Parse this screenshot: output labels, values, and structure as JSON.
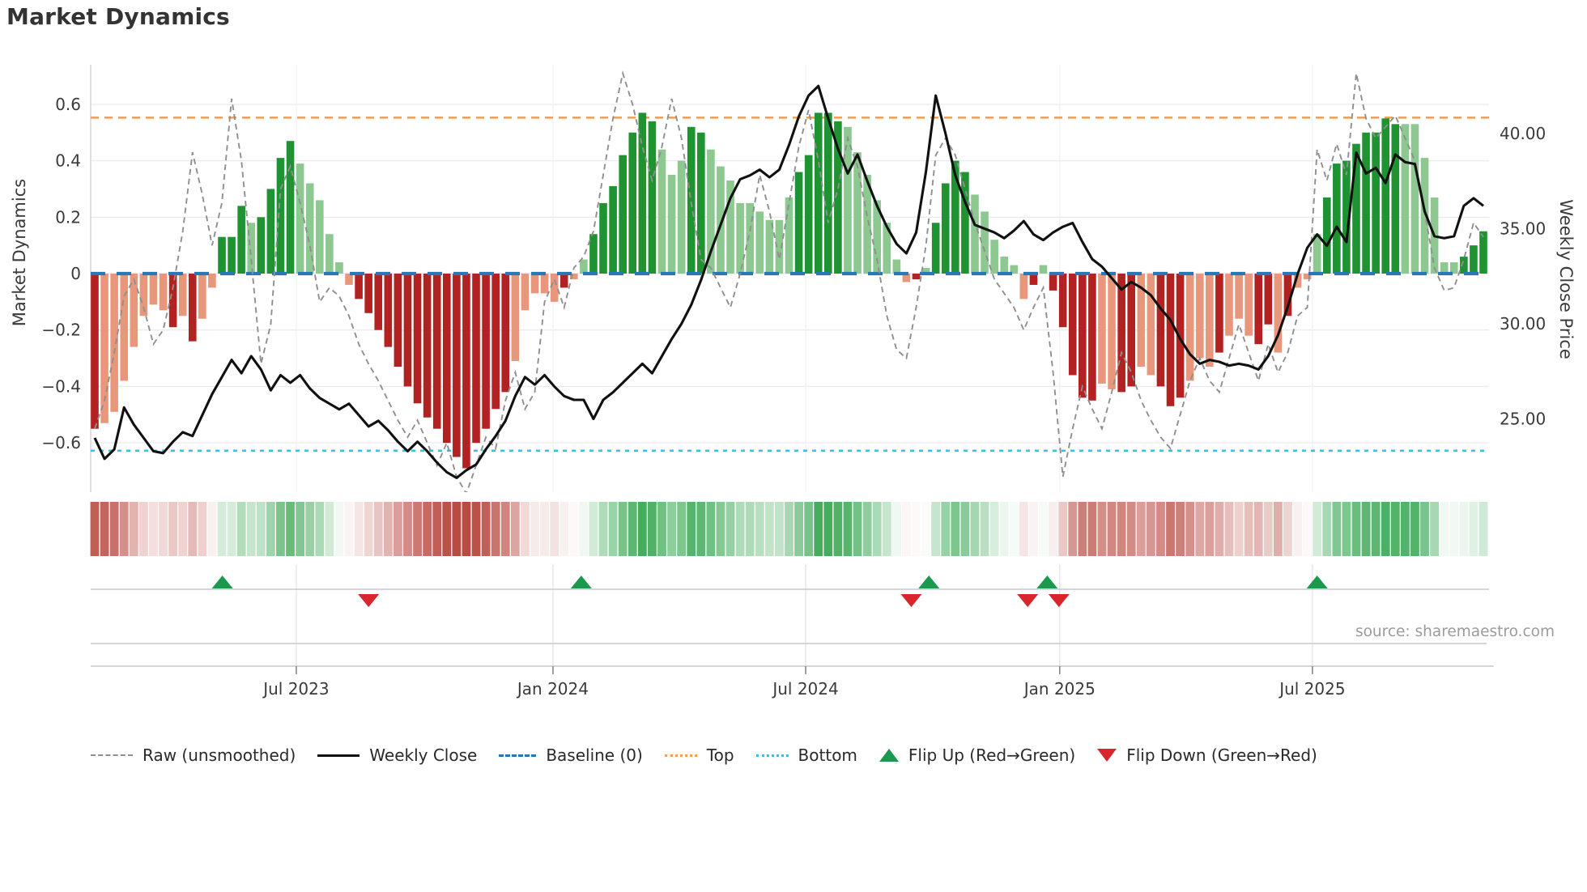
{
  "title": "Market Dynamics",
  "source": "source: sharemaestro.com",
  "legend": {
    "items": [
      {
        "label": "Raw (unsmoothed)",
        "swatch": "dash",
        "color": "#8f8f8f"
      },
      {
        "label": "Weekly Close",
        "swatch": "solid",
        "color": "#111111"
      },
      {
        "label": "Baseline (0)",
        "swatch": "longdash",
        "color": "#2878b8"
      },
      {
        "label": "Top",
        "swatch": "dot",
        "color": "#f0a058"
      },
      {
        "label": "Bottom",
        "swatch": "dot",
        "color": "#35c2e8"
      },
      {
        "label": "Flip Up (Red→Green)",
        "swatch": "tri-up",
        "color": "#1a9a4d"
      },
      {
        "label": "Flip Down (Green→Red)",
        "swatch": "tri-down",
        "color": "#d8262c"
      }
    ]
  },
  "chart_data": {
    "type": "combo",
    "title": "Market Dynamics",
    "frequency": "weekly",
    "week_count": 143,
    "x_tick_labels": [
      "Jul 2023",
      "Jan 2024",
      "Jul 2024",
      "Jan 2025",
      "Jul 2025"
    ],
    "x_tick_weeks": [
      20.61,
      46.86,
      72.7,
      98.68,
      124.52
    ],
    "left_axis": {
      "label": "Market Dynamics",
      "tick_labels": [
        "0.6",
        "0.4",
        "0.2",
        "0",
        "−0.2",
        "−0.4",
        "−0.6"
      ],
      "tick_values": [
        0.6,
        0.4,
        0.2,
        0,
        -0.2,
        -0.4,
        -0.6
      ],
      "range": [
        -0.775,
        0.74
      ]
    },
    "right_axis": {
      "label": "Weekly Close Price",
      "tick_labels": [
        "40.00",
        "35.00",
        "30.00",
        "25.00"
      ],
      "tick_values": [
        40,
        35,
        30,
        25
      ],
      "range": [
        21.15,
        43.6
      ]
    },
    "top_line": 0.553,
    "bottom_line": -0.628,
    "baseline": 0,
    "series": [
      {
        "name": "Market Dynamics (smoothed bars)",
        "type": "bar",
        "axis": "left"
      },
      {
        "name": "Raw (unsmoothed)",
        "type": "line",
        "axis": "left"
      },
      {
        "name": "Weekly Close",
        "type": "line",
        "axis": "right"
      },
      {
        "name": "Heat strip",
        "type": "heatmap"
      }
    ],
    "oscillator": [
      -0.55,
      -0.53,
      -0.49,
      -0.38,
      -0.26,
      -0.15,
      -0.11,
      -0.13,
      -0.19,
      -0.15,
      -0.24,
      -0.16,
      -0.05,
      0.13,
      0.13,
      0.24,
      0.18,
      0.2,
      0.3,
      0.41,
      0.47,
      0.39,
      0.32,
      0.26,
      0.14,
      0.04,
      -0.04,
      -0.09,
      -0.14,
      -0.2,
      -0.26,
      -0.33,
      -0.4,
      -0.46,
      -0.51,
      -0.55,
      -0.6,
      -0.65,
      -0.69,
      -0.6,
      -0.55,
      -0.48,
      -0.42,
      -0.31,
      -0.13,
      -0.07,
      -0.07,
      -0.1,
      -0.05,
      -0.02,
      0.05,
      0.14,
      0.25,
      0.31,
      0.42,
      0.5,
      0.57,
      0.54,
      0.44,
      0.35,
      0.4,
      0.52,
      0.5,
      0.44,
      0.38,
      0.33,
      0.25,
      0.25,
      0.22,
      0.19,
      0.19,
      0.27,
      0.36,
      0.42,
      0.57,
      0.57,
      0.54,
      0.52,
      0.43,
      0.35,
      0.26,
      0.18,
      0.05,
      -0.03,
      -0.02,
      0.02,
      0.18,
      0.32,
      0.4,
      0.36,
      0.28,
      0.22,
      0.12,
      0.06,
      0.03,
      -0.09,
      -0.04,
      0.03,
      -0.06,
      -0.19,
      -0.36,
      -0.44,
      -0.45,
      -0.39,
      -0.41,
      -0.42,
      -0.4,
      -0.33,
      -0.36,
      -0.4,
      -0.47,
      -0.44,
      -0.38,
      -0.3,
      -0.33,
      -0.28,
      -0.22,
      -0.16,
      -0.22,
      -0.25,
      -0.18,
      -0.28,
      -0.15,
      -0.05,
      -0.02,
      0.14,
      0.27,
      0.39,
      0.4,
      0.46,
      0.5,
      0.5,
      0.55,
      0.53,
      0.53,
      0.53,
      0.41,
      0.27,
      0.04,
      0.04,
      0.06,
      0.1,
      0.15
    ],
    "bar_shade": "DLLLLLLLDLDLLDDDLDDDDLLLLLLDDDDDDDDDDDDDDDDLLLLLDLLDDDDDDDLLLDDLLLLLLLLLDDDDDLLLLLLLDLDDDDLLLLLLDLDDDDDLLDDLLDDDLLLDLLLDDLDLLLDDDDDDDDLLLLLLDDDD",
    "raw": [
      -0.55,
      -0.45,
      -0.28,
      -0.08,
      -0.02,
      -0.12,
      -0.25,
      -0.2,
      -0.05,
      0.15,
      0.43,
      0.28,
      0.1,
      0.25,
      0.62,
      0.4,
      0.05,
      -0.32,
      -0.18,
      0.3,
      0.38,
      0.25,
      0.1,
      -0.1,
      -0.05,
      -0.08,
      -0.15,
      -0.25,
      -0.32,
      -0.38,
      -0.45,
      -0.52,
      -0.58,
      -0.52,
      -0.6,
      -0.68,
      -0.6,
      -0.72,
      -0.78,
      -0.68,
      -0.58,
      -0.62,
      -0.45,
      -0.35,
      -0.48,
      -0.42,
      -0.1,
      -0.02,
      -0.12,
      0.02,
      0.06,
      0.15,
      0.35,
      0.55,
      0.71,
      0.6,
      0.45,
      0.33,
      0.45,
      0.62,
      0.48,
      0.25,
      0.05,
      0.02,
      -0.05,
      -0.12,
      0.0,
      0.15,
      0.35,
      0.22,
      0.05,
      0.25,
      0.45,
      0.58,
      0.4,
      0.18,
      0.3,
      0.48,
      0.38,
      0.2,
      0.05,
      -0.15,
      -0.27,
      -0.3,
      -0.12,
      0.1,
      0.42,
      0.48,
      0.42,
      0.3,
      0.18,
      0.08,
      -0.02,
      -0.07,
      -0.12,
      -0.2,
      -0.12,
      -0.05,
      -0.35,
      -0.72,
      -0.55,
      -0.4,
      -0.48,
      -0.55,
      -0.42,
      -0.28,
      -0.35,
      -0.45,
      -0.52,
      -0.58,
      -0.62,
      -0.5,
      -0.38,
      -0.3,
      -0.38,
      -0.42,
      -0.3,
      -0.18,
      -0.28,
      -0.38,
      -0.25,
      -0.35,
      -0.28,
      -0.15,
      -0.12,
      0.44,
      0.33,
      0.46,
      0.35,
      0.71,
      0.55,
      0.48,
      0.52,
      0.56,
      0.48,
      0.4,
      0.22,
      0.02,
      -0.06,
      -0.05,
      0.05,
      0.18,
      0.13
    ],
    "price": [
      24.0,
      22.9,
      23.4,
      25.6,
      24.7,
      24.0,
      23.3,
      23.2,
      23.8,
      24.3,
      24.1,
      25.2,
      26.3,
      27.2,
      28.1,
      27.4,
      28.3,
      27.6,
      26.5,
      27.3,
      26.9,
      27.3,
      26.6,
      26.1,
      25.8,
      25.5,
      25.8,
      25.2,
      24.6,
      24.9,
      24.4,
      23.8,
      23.3,
      23.8,
      23.3,
      22.7,
      22.2,
      21.9,
      22.3,
      22.6,
      23.4,
      24.1,
      24.9,
      26.2,
      27.2,
      26.8,
      27.3,
      26.7,
      26.2,
      26.0,
      26.0,
      25.0,
      26.0,
      26.4,
      26.9,
      27.4,
      27.9,
      27.4,
      28.3,
      29.2,
      30.0,
      31.0,
      32.3,
      33.8,
      35.2,
      36.6,
      37.6,
      37.8,
      38.1,
      37.7,
      38.1,
      39.4,
      40.9,
      42.0,
      42.5,
      40.8,
      39.2,
      37.9,
      38.9,
      37.5,
      36.2,
      35.1,
      34.2,
      33.7,
      34.8,
      38.0,
      42.0,
      40.0,
      37.8,
      36.4,
      35.2,
      35.0,
      34.8,
      34.5,
      34.9,
      35.4,
      34.7,
      34.4,
      34.8,
      35.1,
      35.3,
      34.3,
      33.4,
      33.0,
      32.4,
      31.8,
      32.2,
      31.9,
      31.5,
      30.8,
      30.2,
      29.2,
      28.4,
      27.9,
      28.1,
      28.0,
      27.8,
      27.9,
      27.8,
      27.6,
      28.3,
      29.4,
      30.9,
      32.6,
      34.0,
      34.7,
      34.1,
      35.1,
      34.3,
      39.0,
      37.9,
      38.2,
      37.4,
      38.9,
      38.5,
      38.4,
      35.9,
      34.6,
      34.5,
      34.6,
      36.2,
      36.6,
      36.2
    ],
    "flip_up_weeks": [
      13.05,
      49.75,
      85.3,
      97.4,
      125.0
    ],
    "flip_down_weeks": [
      28.0,
      83.5,
      95.4,
      98.6
    ],
    "colors": {
      "bar_green_dark": "#1f9232",
      "bar_green_light": "#8cc88f",
      "bar_red_dark": "#b22222",
      "bar_red_light": "#e8977c",
      "baseline": "#2878b8",
      "top_line": "#f0a058",
      "bottom_line": "#35c2e8",
      "raw_line": "#8f8f8f",
      "close_line": "#111111",
      "flip_up": "#1a9a4d",
      "flip_down": "#d8262c",
      "heat_green": "#36a650",
      "heat_red": "#b94b42",
      "grid": "#ebebf2",
      "lane_line": "#c9c9c9"
    }
  }
}
